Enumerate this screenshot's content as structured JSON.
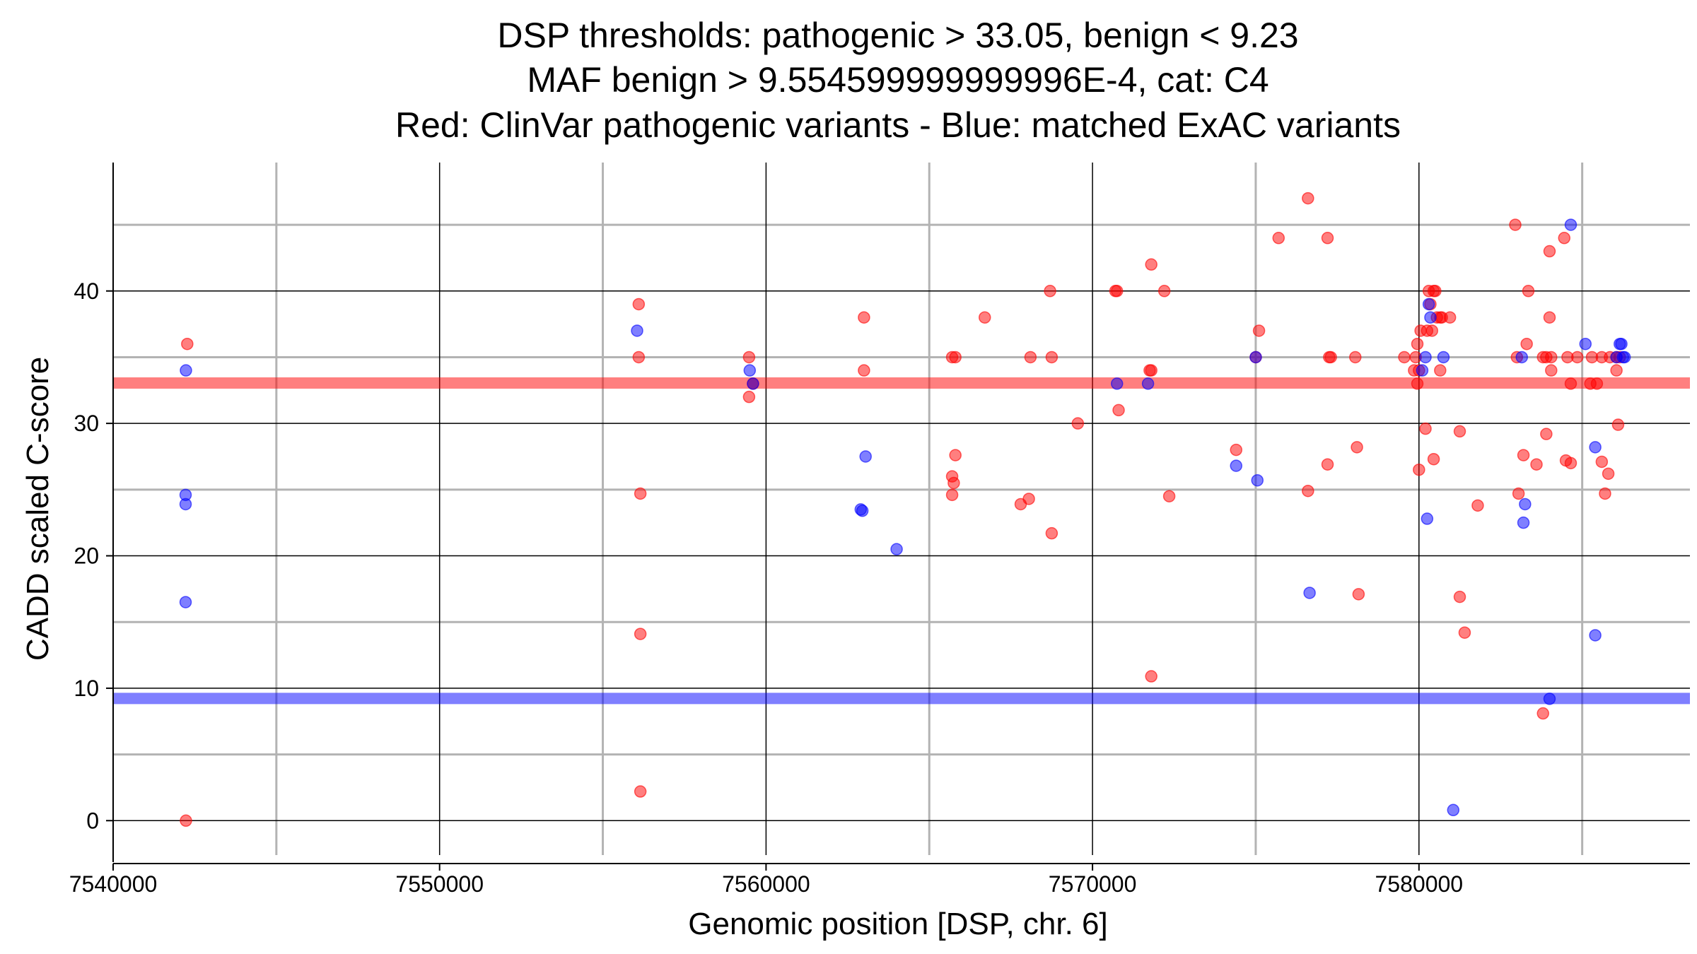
{
  "chart_data": {
    "type": "scatter",
    "title_lines": [
      "DSP thresholds: pathogenic > 33.05, benign < 9.23",
      "MAF benign > 9.554599999999996E-4, cat: C4",
      "Red: ClinVar pathogenic variants - Blue: matched ExAC variants"
    ],
    "xlabel": "Genomic position [DSP, chr. 6]",
    "ylabel": "CADD scaled C-score",
    "xlim": [
      7540000,
      7588300
    ],
    "ylim": [
      -2.6,
      49.7
    ],
    "x_major_ticks": [
      7540000,
      7550000,
      7560000,
      7570000,
      7580000
    ],
    "x_tick_labels": [
      "7540000",
      "7550000",
      "7560000",
      "7570000",
      "7580000"
    ],
    "x_minor_ticks": [
      7545000,
      7555000,
      7565000,
      7575000,
      7585000
    ],
    "y_major_ticks": [
      0,
      10,
      20,
      30,
      40
    ],
    "y_tick_labels": [
      "0",
      "10",
      "20",
      "30",
      "40"
    ],
    "y_minor_ticks": [
      5,
      15,
      25,
      35,
      45
    ],
    "thresholds": [
      {
        "name": "pathogenic",
        "value": 33.05,
        "color": "#ff0000"
      },
      {
        "name": "benign",
        "value": 9.23,
        "color": "#0000ff"
      }
    ],
    "colors": {
      "pathogenic": "#ff0000",
      "benign": "#0000ff",
      "grid_major": "#000000",
      "grid_minor": "#b3b3b3"
    },
    "series": [
      {
        "name": "ClinVar pathogenic variants",
        "color": "#ff0000",
        "points": [
          [
            7542270,
            36
          ],
          [
            7542230,
            0
          ],
          [
            7556100,
            39
          ],
          [
            7556100,
            35
          ],
          [
            7556150,
            24.7
          ],
          [
            7556150,
            14.1
          ],
          [
            7556150,
            2.2
          ],
          [
            7559480,
            35
          ],
          [
            7559480,
            32
          ],
          [
            7559600,
            33
          ],
          [
            7563000,
            38
          ],
          [
            7563000,
            34
          ],
          [
            7565700,
            35
          ],
          [
            7565800,
            35
          ],
          [
            7565700,
            26
          ],
          [
            7565750,
            25.5
          ],
          [
            7565800,
            27.6
          ],
          [
            7565700,
            24.6
          ],
          [
            7566700,
            38
          ],
          [
            7567800,
            23.9
          ],
          [
            7568050,
            24.3
          ],
          [
            7568100,
            35
          ],
          [
            7568700,
            40
          ],
          [
            7568750,
            35
          ],
          [
            7568750,
            21.7
          ],
          [
            7569550,
            30
          ],
          [
            7570700,
            40
          ],
          [
            7570750,
            40
          ],
          [
            7570800,
            31
          ],
          [
            7571750,
            34
          ],
          [
            7571800,
            34
          ],
          [
            7571800,
            42
          ],
          [
            7571800,
            10.9
          ],
          [
            7572200,
            40
          ],
          [
            7572350,
            24.5
          ],
          [
            7574400,
            28
          ],
          [
            7575000,
            35
          ],
          [
            7575100,
            37
          ],
          [
            7575700,
            44
          ],
          [
            7576600,
            47
          ],
          [
            7576600,
            24.9
          ],
          [
            7577200,
            44
          ],
          [
            7577250,
            35
          ],
          [
            7577300,
            35
          ],
          [
            7577200,
            26.9
          ],
          [
            7578050,
            35
          ],
          [
            7578150,
            17.1
          ],
          [
            7578100,
            28.2
          ],
          [
            7579550,
            35
          ],
          [
            7579850,
            34
          ],
          [
            7579950,
            33
          ],
          [
            7579900,
            35
          ],
          [
            7579950,
            36
          ],
          [
            7580000,
            26.5
          ],
          [
            7580000,
            34
          ],
          [
            7580050,
            37
          ],
          [
            7580200,
            29.6
          ],
          [
            7580250,
            37
          ],
          [
            7580300,
            40
          ],
          [
            7580350,
            39
          ],
          [
            7580400,
            37
          ],
          [
            7580450,
            40
          ],
          [
            7580500,
            40
          ],
          [
            7580550,
            38
          ],
          [
            7580650,
            38
          ],
          [
            7580700,
            38
          ],
          [
            7580950,
            38
          ],
          [
            7580450,
            27.3
          ],
          [
            7580650,
            34
          ],
          [
            7581250,
            29.4
          ],
          [
            7581250,
            16.9
          ],
          [
            7581400,
            14.2
          ],
          [
            7581800,
            23.8
          ],
          [
            7582950,
            45
          ],
          [
            7583000,
            35
          ],
          [
            7583050,
            24.7
          ],
          [
            7583200,
            27.6
          ],
          [
            7583300,
            36
          ],
          [
            7583350,
            40
          ],
          [
            7583600,
            26.9
          ],
          [
            7583800,
            35
          ],
          [
            7583900,
            35
          ],
          [
            7583900,
            29.2
          ],
          [
            7583800,
            8.1
          ],
          [
            7584000,
            43
          ],
          [
            7584000,
            38
          ],
          [
            7584050,
            34
          ],
          [
            7584050,
            35
          ],
          [
            7584450,
            44
          ],
          [
            7584500,
            27.2
          ],
          [
            7584550,
            35
          ],
          [
            7584650,
            27
          ],
          [
            7584650,
            33
          ],
          [
            7584850,
            35
          ],
          [
            7585250,
            33
          ],
          [
            7585300,
            35
          ],
          [
            7585450,
            33
          ],
          [
            7585600,
            35
          ],
          [
            7585600,
            27.1
          ],
          [
            7585700,
            24.7
          ],
          [
            7585800,
            26.2
          ],
          [
            7585850,
            35
          ],
          [
            7586050,
            35
          ],
          [
            7586050,
            34
          ],
          [
            7586150,
            35
          ],
          [
            7586100,
            29.9
          ]
        ]
      },
      {
        "name": "matched ExAC variants",
        "color": "#0000ff",
        "points": [
          [
            7542230,
            34
          ],
          [
            7542220,
            24.6
          ],
          [
            7542220,
            23.9
          ],
          [
            7542220,
            16.5
          ],
          [
            7556050,
            37
          ],
          [
            7559500,
            34
          ],
          [
            7559600,
            33
          ],
          [
            7562900,
            23.5
          ],
          [
            7562950,
            23.4
          ],
          [
            7563050,
            27.5
          ],
          [
            7564000,
            20.5
          ],
          [
            7570750,
            33
          ],
          [
            7571700,
            33
          ],
          [
            7574400,
            26.8
          ],
          [
            7575000,
            35
          ],
          [
            7575050,
            25.7
          ],
          [
            7576650,
            17.2
          ],
          [
            7580100,
            34
          ],
          [
            7580200,
            35
          ],
          [
            7580250,
            22.8
          ],
          [
            7580300,
            39
          ],
          [
            7580350,
            38
          ],
          [
            7580750,
            35
          ],
          [
            7581050,
            0.8
          ],
          [
            7583150,
            35
          ],
          [
            7583200,
            22.5
          ],
          [
            7583250,
            23.9
          ],
          [
            7584000,
            9.2
          ],
          [
            7584650,
            45
          ],
          [
            7585100,
            36
          ],
          [
            7585400,
            28.2
          ],
          [
            7585400,
            14
          ],
          [
            7586050,
            35
          ],
          [
            7586150,
            36
          ],
          [
            7586200,
            36
          ],
          [
            7586250,
            35
          ],
          [
            7586300,
            35
          ]
        ]
      }
    ]
  }
}
